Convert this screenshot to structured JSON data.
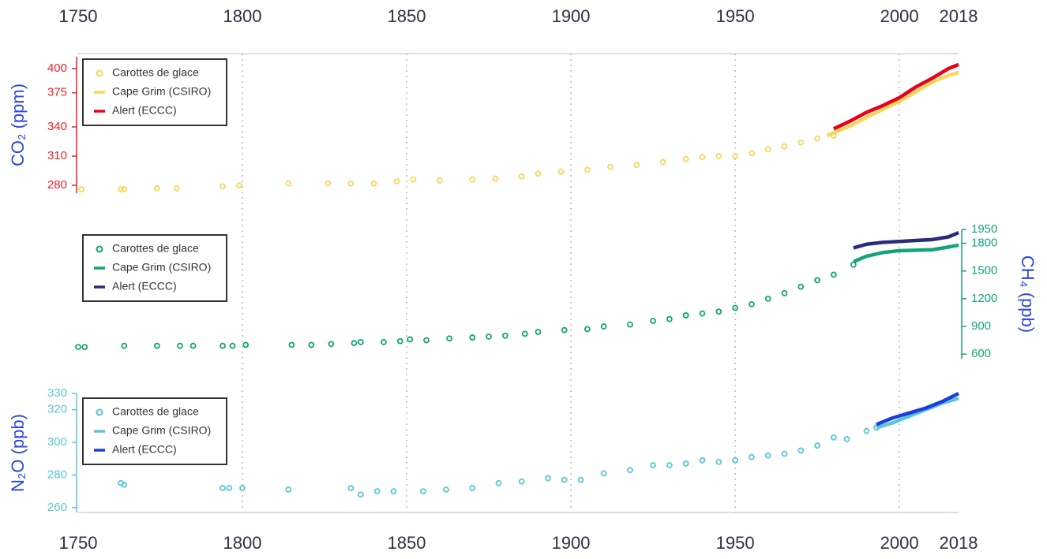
{
  "chart_data": [
    {
      "type": "scatter",
      "y_label": "CO₂ (ppm)",
      "axis_side": "left",
      "axis_color": "#f0202a",
      "legend": "upper left",
      "xlim": [
        1750,
        2018
      ],
      "xticks": [
        1750,
        1800,
        1850,
        1900,
        1950,
        2000,
        2018
      ],
      "grid": true,
      "xaxis_side": "top",
      "ylim": [
        272,
        412
      ],
      "yticks": [
        280,
        310,
        340,
        375,
        400
      ],
      "series": [
        {
          "name": "Carottes de glace",
          "style": "points",
          "color": "#f7d75c",
          "x": [
            1751,
            1763,
            1764,
            1774,
            1780,
            1794,
            1799,
            1814,
            1826,
            1833,
            1840,
            1847,
            1852,
            1860,
            1870,
            1877,
            1885,
            1890,
            1897,
            1905,
            1912,
            1920,
            1928,
            1935,
            1940,
            1945,
            1950,
            1955,
            1960,
            1965,
            1970,
            1975,
            1980
          ],
          "values": [
            276,
            276,
            276,
            277,
            277,
            279,
            280,
            282,
            282,
            282,
            282,
            284,
            286,
            285,
            286,
            287,
            289,
            292,
            294,
            296,
            299,
            301,
            304,
            307,
            309,
            310,
            310,
            313,
            317,
            320,
            324,
            328,
            331
          ]
        },
        {
          "name": "Cape Grim (CSIRO)",
          "style": "line",
          "color": "#f7d75c",
          "x": [
            1978,
            1985,
            1990,
            1995,
            2000,
            2005,
            2010,
            2015,
            2018
          ],
          "values": [
            331,
            341,
            350,
            358,
            366,
            376,
            386,
            393,
            396
          ]
        },
        {
          "name": "Alert (ECCC)",
          "style": "line",
          "color": "#e8001c",
          "x": [
            1980,
            1985,
            1990,
            1995,
            2000,
            2005,
            2010,
            2015,
            2018
          ],
          "values": [
            338,
            346,
            355,
            362,
            370,
            381,
            390,
            400,
            404
          ]
        }
      ]
    },
    {
      "type": "scatter",
      "y_label": "CH₄ (ppb)",
      "axis_side": "right",
      "axis_color": "#13a37a",
      "legend": "upper left",
      "ylim": [
        550,
        1950
      ],
      "yticks": [
        600,
        900,
        1200,
        1500,
        1800,
        1950
      ],
      "series": [
        {
          "name": "Carottes de glace",
          "style": "points",
          "color": "#13a37a",
          "x": [
            1750,
            1752,
            1764,
            1774,
            1781,
            1785,
            1794,
            1797,
            1801,
            1815,
            1821,
            1827,
            1834,
            1836,
            1843,
            1848,
            1851,
            1856,
            1863,
            1870,
            1875,
            1880,
            1886,
            1890,
            1898,
            1905,
            1910,
            1918,
            1925,
            1930,
            1935,
            1940,
            1945,
            1950,
            1955,
            1960,
            1965,
            1970,
            1975,
            1980,
            1986
          ],
          "values": [
            677,
            677,
            690,
            690,
            690,
            690,
            690,
            690,
            700,
            700,
            700,
            710,
            720,
            730,
            730,
            740,
            760,
            750,
            770,
            780,
            790,
            800,
            820,
            840,
            860,
            870,
            900,
            920,
            960,
            980,
            1020,
            1040,
            1060,
            1100,
            1140,
            1200,
            1260,
            1330,
            1400,
            1460,
            1568
          ]
        },
        {
          "name": "Cape Grim (CSIRO)",
          "style": "line",
          "color": "#13a37a",
          "x": [
            1986,
            1990,
            1995,
            2000,
            2005,
            2010,
            2015,
            2018
          ],
          "values": [
            1600,
            1660,
            1700,
            1720,
            1725,
            1730,
            1760,
            1780
          ]
        },
        {
          "name": "Alert (ECCC)",
          "style": "line",
          "color": "#2a2a7c",
          "x": [
            1986,
            1990,
            1995,
            2000,
            2005,
            2010,
            2015,
            2018
          ],
          "values": [
            1750,
            1790,
            1810,
            1820,
            1830,
            1840,
            1870,
            1915
          ]
        }
      ]
    },
    {
      "type": "scatter",
      "y_label": "N₂O (ppb)",
      "axis_side": "left",
      "axis_color": "#5bc6d6",
      "legend": "upper left",
      "xlim": [
        1750,
        2018
      ],
      "xticks": [
        1750,
        1800,
        1850,
        1900,
        1950,
        2000,
        2018
      ],
      "xaxis_side": "bottom",
      "ylim": [
        257,
        330
      ],
      "yticks": [
        260,
        280,
        300,
        320,
        330
      ],
      "series": [
        {
          "name": "Carottes de glace",
          "style": "points",
          "color": "#5bc6d6",
          "x": [
            1763,
            1764,
            1794,
            1796,
            1800,
            1814,
            1833,
            1836,
            1841,
            1846,
            1855,
            1862,
            1870,
            1878,
            1885,
            1893,
            1898,
            1903,
            1910,
            1918,
            1925,
            1930,
            1935,
            1940,
            1945,
            1950,
            1955,
            1960,
            1965,
            1970,
            1975,
            1980,
            1984,
            1990,
            1993
          ],
          "values": [
            275,
            274,
            272,
            272,
            272,
            271,
            272,
            268,
            270,
            270,
            270,
            271,
            272,
            275,
            276,
            278,
            277,
            277,
            281,
            283,
            286,
            286,
            287,
            289,
            288,
            289,
            291,
            292,
            293,
            295,
            298,
            303,
            302,
            307,
            309
          ]
        },
        {
          "name": "Cape Grim (CSIRO)",
          "style": "line",
          "color": "#5bc6d6",
          "x": [
            1993,
            1998,
            2003,
            2008,
            2013,
            2018
          ],
          "values": [
            309,
            312,
            316,
            320,
            324,
            327
          ]
        },
        {
          "name": "Alert (ECCC)",
          "style": "line",
          "color": "#1a3de0",
          "x": [
            1993,
            1998,
            2003,
            2008,
            2013,
            2018
          ],
          "values": [
            311,
            315,
            318,
            321,
            325,
            330
          ]
        }
      ]
    }
  ]
}
